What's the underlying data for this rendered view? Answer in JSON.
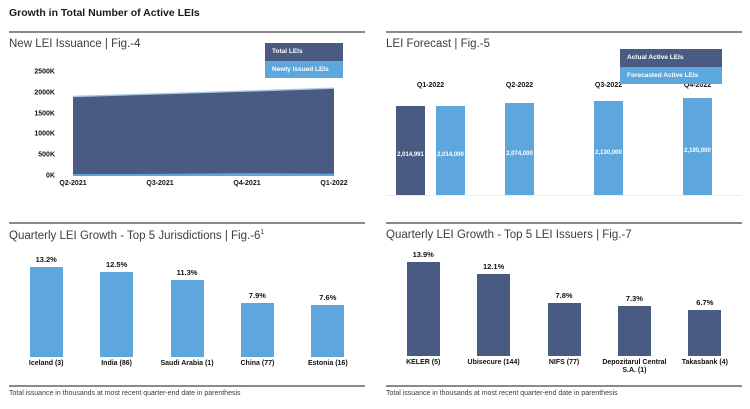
{
  "page_title": "Growth in Total Number of Active LEIs",
  "colors": {
    "navy": "#4A5B83",
    "blue": "#5DA7DC",
    "divider_gray": "#8A8A8A",
    "area_top_edge": "#A6C6E8"
  },
  "panels": {
    "issuance": {
      "title": "New LEI Issuance | Fig.-4",
      "legend": [
        {
          "label": "Total LEIs",
          "swatch": "navy"
        },
        {
          "label": "Newly Issued LEIs",
          "swatch": "blue"
        }
      ]
    },
    "forecast": {
      "title": "LEI Forecast | Fig.-5",
      "legend": [
        {
          "label": "Actual Active LEIs",
          "swatch": "navy"
        },
        {
          "label": "Forecasted Active LEIs",
          "swatch": "blue"
        }
      ]
    },
    "jurisdictions": {
      "title": "Quarterly LEI Growth - Top 5 Jurisdictions | Fig.-6",
      "title_superscript": "1",
      "footnote": "Total issuance in thousands at most recent quarter-end date in parenthesis"
    },
    "issuers": {
      "title": "Quarterly LEI Growth - Top 5 LEI Issuers | Fig.-7",
      "footnote": "Total issuance in thousands at most recent quarter-end date in parenthesis"
    }
  },
  "chart_data": [
    {
      "id": "issuance",
      "type": "area",
      "title": "New LEI Issuance | Fig.-4",
      "x": [
        "Q2-2021",
        "Q3-2021",
        "Q4-2021",
        "Q1-2022"
      ],
      "series": [
        {
          "name": "Total LEIs",
          "color": "#4A5B83",
          "values_thousands": [
            1910,
            1975,
            2040,
            2110
          ]
        },
        {
          "name": "Newly Issued LEIs",
          "color": "#5DA7DC",
          "values_thousands": [
            45,
            50,
            70,
            55
          ]
        }
      ],
      "yticks": [
        "2500K",
        "2000K",
        "1500K",
        "1000K",
        "500K",
        "0K"
      ],
      "ylim_thousands": [
        0,
        2500
      ],
      "grid": false,
      "legend_position": "top-right"
    },
    {
      "id": "forecast",
      "type": "bar",
      "title": "LEI Forecast | Fig.-5",
      "legend": [
        "Actual Active LEIs",
        "Forecasted Active LEIs"
      ],
      "category_labels_position": "above",
      "value_labels_position": "inside",
      "groups": [
        {
          "category": "Q1-2022",
          "bars": [
            {
              "series": "Actual Active LEIs",
              "value": 2014991,
              "label": "2,014,991",
              "color": "#4A5B83"
            },
            {
              "series": "Forecasted Active LEIs",
              "value": 2014000,
              "label": "2,014,000",
              "color": "#5DA7DC"
            }
          ]
        },
        {
          "category": "Q2-2022",
          "bars": [
            {
              "series": "Forecasted Active LEIs",
              "value": 2074000,
              "label": "2,074,000",
              "color": "#5DA7DC"
            }
          ]
        },
        {
          "category": "Q3-2022",
          "bars": [
            {
              "series": "Forecasted Active LEIs",
              "value": 2130000,
              "label": "2,130,000",
              "color": "#5DA7DC"
            }
          ]
        },
        {
          "category": "Q4-2022",
          "bars": [
            {
              "series": "Forecasted Active LEIs",
              "value": 2195000,
              "label": "2,195,000",
              "color": "#5DA7DC"
            }
          ]
        }
      ]
    },
    {
      "id": "jurisdictions",
      "type": "bar",
      "title": "Quarterly LEI Growth - Top 5 Jurisdictions | Fig.-6¹",
      "categories": [
        "Iceland (3)",
        "India (86)",
        "Saudi Arabia (1)",
        "China (77)",
        "Estonia (16)"
      ],
      "values_percent": [
        13.2,
        12.5,
        11.3,
        7.9,
        7.6
      ],
      "labels": [
        "13.2%",
        "12.5%",
        "11.3%",
        "7.9%",
        "7.6%"
      ],
      "bar_color": "#5DA7DC",
      "footnote": "Total issuance in thousands at most recent quarter-end date in parenthesis"
    },
    {
      "id": "issuers",
      "type": "bar",
      "title": "Quarterly LEI Growth - Top 5 LEI Issuers | Fig.-7",
      "categories": [
        "KELER (5)",
        "Ubisecure (144)",
        "NIFS (77)",
        "Depozitarul Central S.A. (1)",
        "Takasbank (4)"
      ],
      "values_percent": [
        13.9,
        12.1,
        7.8,
        7.3,
        6.7
      ],
      "labels": [
        "13.9%",
        "12.1%",
        "7.8%",
        "7.3%",
        "6.7%"
      ],
      "bar_color": "#4A5B83",
      "footnote": "Total issuance in thousands at most recent quarter-end date in parenthesis"
    }
  ]
}
